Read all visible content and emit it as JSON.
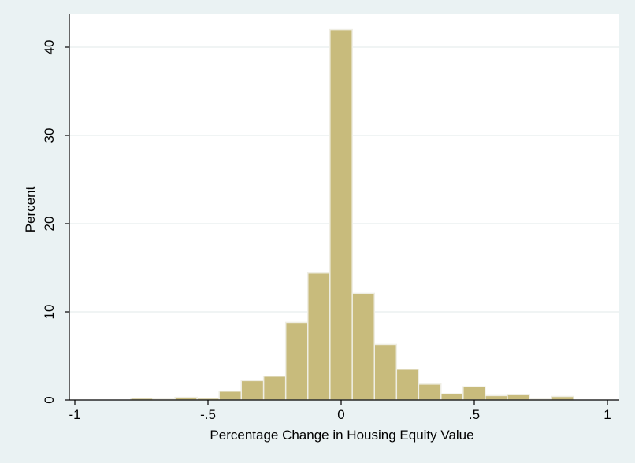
{
  "chart_data": {
    "type": "bar",
    "title": "",
    "xlabel": "Percentage Change in Housing Equity Value",
    "ylabel": "Percent",
    "xlim": [
      -1,
      1
    ],
    "ylim": [
      0,
      42
    ],
    "grid": true,
    "bin_width": 0.0833,
    "x_ticks": [
      {
        "value": -1,
        "label": "-1"
      },
      {
        "value": -0.5,
        "label": "-.5"
      },
      {
        "value": 0,
        "label": "0"
      },
      {
        "value": 0.5,
        "label": ".5"
      },
      {
        "value": 1,
        "label": "1"
      }
    ],
    "y_ticks": [
      {
        "value": 0,
        "label": "0"
      },
      {
        "value": 10,
        "label": "10"
      },
      {
        "value": 20,
        "label": "20"
      },
      {
        "value": 30,
        "label": "30"
      },
      {
        "value": 40,
        "label": "40"
      }
    ],
    "bins": [
      {
        "x0": -0.79,
        "x1": -0.707,
        "value": 0.2
      },
      {
        "x0": -0.707,
        "x1": -0.624,
        "value": 0.1
      },
      {
        "x0": -0.624,
        "x1": -0.541,
        "value": 0.3
      },
      {
        "x0": -0.541,
        "x1": -0.458,
        "value": 0.2
      },
      {
        "x0": -0.458,
        "x1": -0.375,
        "value": 1.0
      },
      {
        "x0": -0.375,
        "x1": -0.291,
        "value": 2.2
      },
      {
        "x0": -0.291,
        "x1": -0.208,
        "value": 2.7
      },
      {
        "x0": -0.208,
        "x1": -0.125,
        "value": 8.8
      },
      {
        "x0": -0.125,
        "x1": -0.042,
        "value": 14.4
      },
      {
        "x0": -0.042,
        "x1": 0.042,
        "value": 42.0
      },
      {
        "x0": 0.042,
        "x1": 0.125,
        "value": 12.1
      },
      {
        "x0": 0.125,
        "x1": 0.208,
        "value": 6.3
      },
      {
        "x0": 0.208,
        "x1": 0.291,
        "value": 3.5
      },
      {
        "x0": 0.291,
        "x1": 0.375,
        "value": 1.8
      },
      {
        "x0": 0.375,
        "x1": 0.458,
        "value": 0.7
      },
      {
        "x0": 0.458,
        "x1": 0.541,
        "value": 1.5
      },
      {
        "x0": 0.541,
        "x1": 0.624,
        "value": 0.5
      },
      {
        "x0": 0.624,
        "x1": 0.707,
        "value": 0.6
      },
      {
        "x0": 0.707,
        "x1": 0.79,
        "value": 0.1
      },
      {
        "x0": 0.79,
        "x1": 0.873,
        "value": 0.4
      }
    ],
    "colors": {
      "bar_fill": "#c8bb7c",
      "bar_stroke": "#efeee4",
      "plot_background": "#ffffff",
      "outer_background": "#eaf2f3",
      "grid": "#e6eeee",
      "axis": "#000000"
    }
  }
}
